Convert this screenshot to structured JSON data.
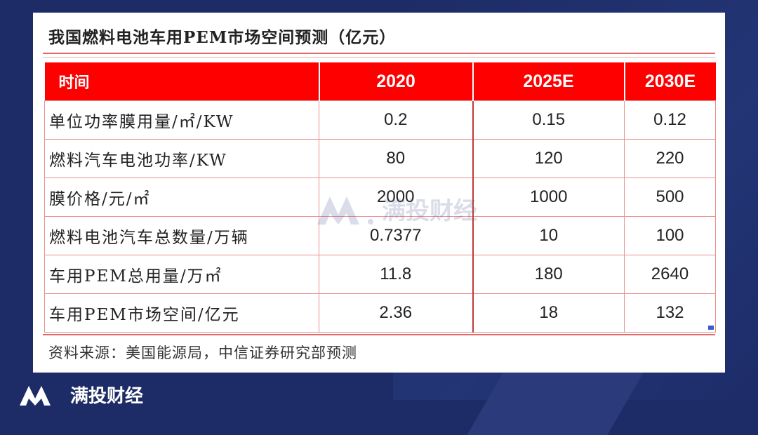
{
  "title": "我国燃料电池车用PEM市场空间预测（亿元）",
  "table": {
    "headers": [
      "时间",
      "2020",
      "2025E",
      "2030E"
    ],
    "rows": [
      {
        "label": "单位功率膜用量/㎡/KW",
        "v2020": "0.2",
        "v2025": "0.15",
        "v2030": "0.12"
      },
      {
        "label": "燃料汽车电池功率/KW",
        "v2020": "80",
        "v2025": "120",
        "v2030": "220"
      },
      {
        "label": "膜价格/元/㎡",
        "v2020": "2000",
        "v2025": "1000",
        "v2030": "500"
      },
      {
        "label": "燃料电池汽车总数量/万辆",
        "v2020": "0.7377",
        "v2025": "10",
        "v2030": "100"
      },
      {
        "label": "车用PEM总用量/万㎡",
        "v2020": "11.8",
        "v2025": "180",
        "v2030": "2640"
      },
      {
        "label": "车用PEM市场空间/亿元",
        "v2020": "2.36",
        "v2025": "18",
        "v2030": "132"
      }
    ]
  },
  "source": "资料来源：美国能源局，中信证券研究部预测",
  "watermark": "满投财经",
  "footer_brand": "满投财经",
  "colors": {
    "header_red": "#ff0000",
    "background": "#1d2c66",
    "rule": "#e06a6a"
  }
}
